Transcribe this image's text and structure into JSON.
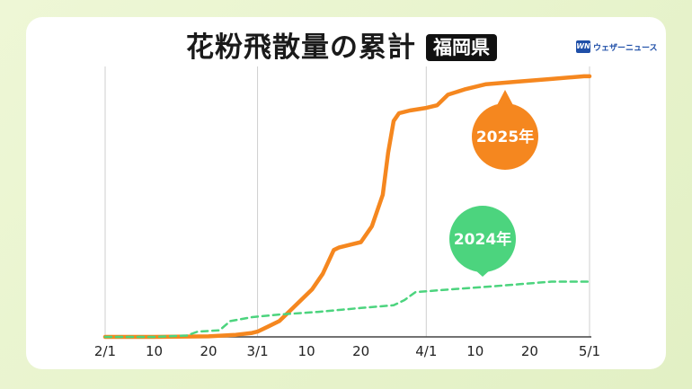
{
  "header": {
    "title": "花粉飛散量の累計",
    "region": "福岡県",
    "logo_mark": "WN",
    "logo_text": "ウェザーニュース"
  },
  "colors": {
    "series_2025": "#f5871f",
    "series_2024": "#4cd47e",
    "grid": "#cfcfcf"
  },
  "chart_data": {
    "type": "line",
    "title": "花粉飛散量の累計",
    "x_ticks": [
      "2/1",
      "10",
      "20",
      "3/1",
      "10",
      "20",
      "4/1",
      "10",
      "20",
      "5/1"
    ],
    "x_range": [
      "2025-02-01",
      "2025-05-01"
    ],
    "y_range": [
      0,
      100
    ],
    "grid": "vertical lines at month starts",
    "series": [
      {
        "name": "2025年",
        "style": "solid",
        "color": "#f5871f",
        "points": [
          [
            "02-01",
            0
          ],
          [
            "02-10",
            0
          ],
          [
            "02-20",
            0.2
          ],
          [
            "02-25",
            0.8
          ],
          [
            "02-28",
            1.5
          ],
          [
            "03-01",
            2
          ],
          [
            "03-03",
            4
          ],
          [
            "03-05",
            6
          ],
          [
            "03-07",
            10
          ],
          [
            "03-09",
            14
          ],
          [
            "03-11",
            18
          ],
          [
            "03-13",
            24
          ],
          [
            "03-15",
            33
          ],
          [
            "03-16",
            34
          ],
          [
            "03-18",
            35
          ],
          [
            "03-20",
            36
          ],
          [
            "03-22",
            42
          ],
          [
            "03-24",
            54
          ],
          [
            "03-25",
            70
          ],
          [
            "03-26",
            82
          ],
          [
            "03-27",
            85
          ],
          [
            "03-29",
            86
          ],
          [
            "04-01",
            87
          ],
          [
            "04-03",
            88
          ],
          [
            "04-05",
            92
          ],
          [
            "04-08",
            94
          ],
          [
            "04-12",
            96
          ],
          [
            "04-18",
            97
          ],
          [
            "04-24",
            98
          ],
          [
            "04-30",
            99
          ],
          [
            "05-01",
            99
          ]
        ]
      },
      {
        "name": "2024年",
        "style": "dashed",
        "color": "#4cd47e",
        "points": [
          [
            "02-01",
            0
          ],
          [
            "02-10",
            0
          ],
          [
            "02-16",
            0.5
          ],
          [
            "02-18",
            2
          ],
          [
            "02-22",
            2.5
          ],
          [
            "02-24",
            6
          ],
          [
            "02-28",
            7.5
          ],
          [
            "03-05",
            8.5
          ],
          [
            "03-12",
            9.5
          ],
          [
            "03-20",
            11
          ],
          [
            "03-26",
            12
          ],
          [
            "03-28",
            14
          ],
          [
            "03-30",
            17
          ],
          [
            "04-05",
            18
          ],
          [
            "04-12",
            19
          ],
          [
            "04-18",
            20
          ],
          [
            "04-24",
            21
          ],
          [
            "04-30",
            21
          ],
          [
            "05-01",
            21
          ]
        ]
      }
    ],
    "labels": [
      "2025年",
      "2024年"
    ]
  }
}
